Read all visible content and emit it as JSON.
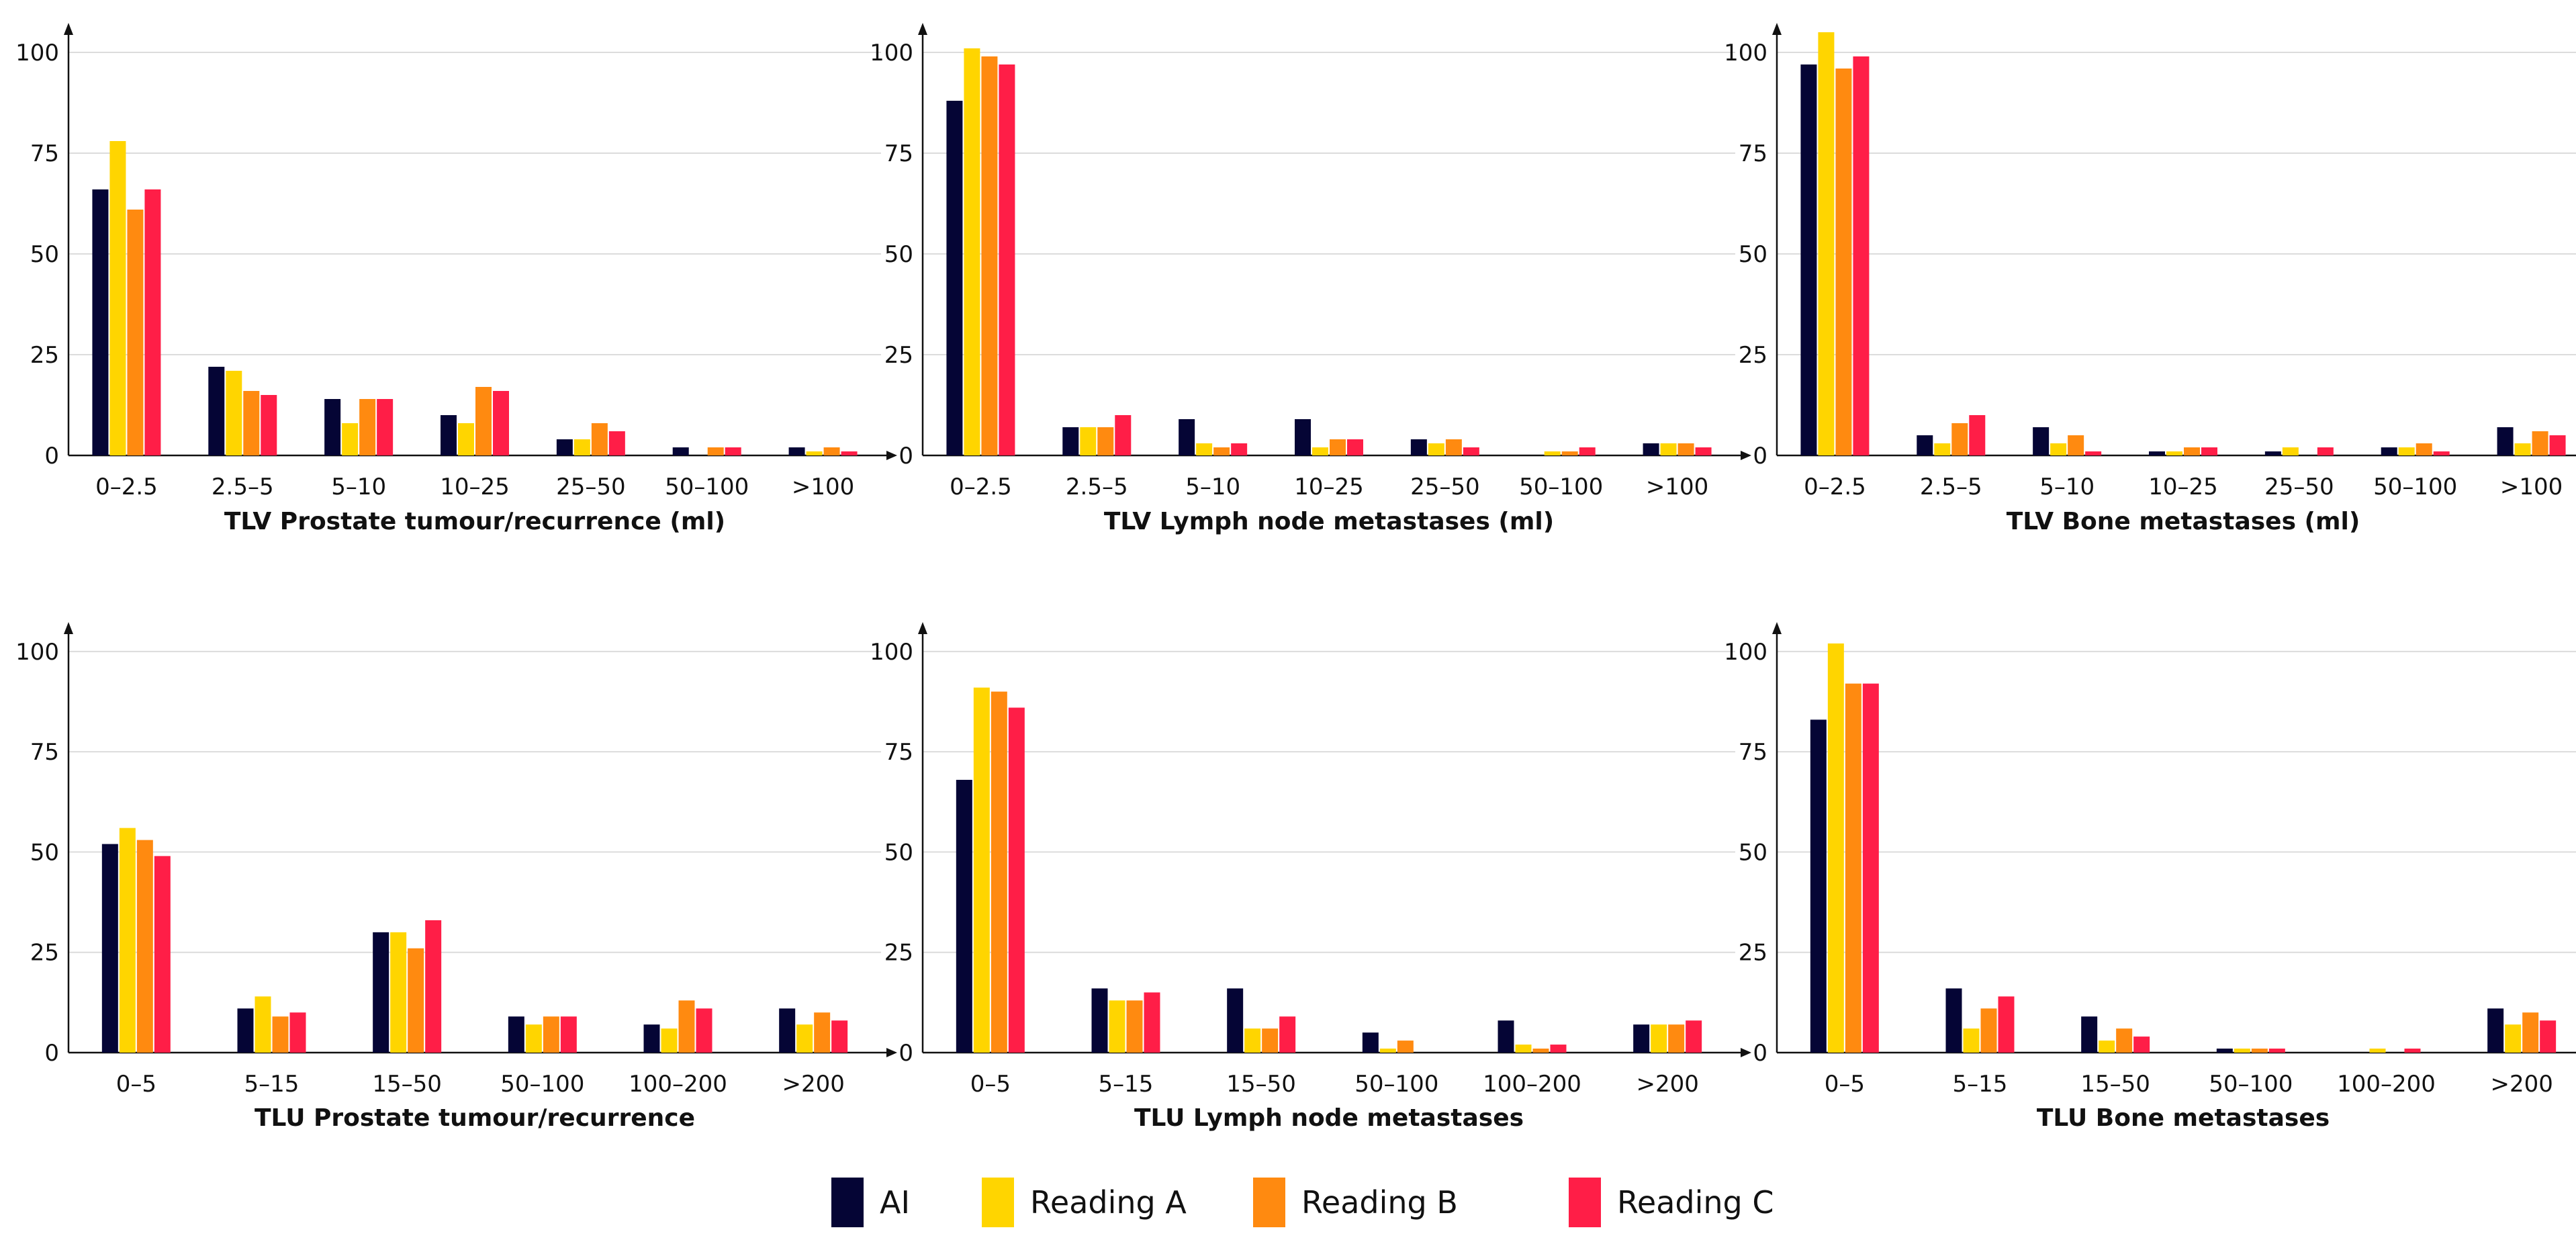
{
  "legend": [
    {
      "name": "AI",
      "color": "#050535"
    },
    {
      "name": "Reading A",
      "color": "#FFD500"
    },
    {
      "name": "Reading B",
      "color": "#FF8A10"
    },
    {
      "name": "Reading C",
      "color": "#FF1E47"
    }
  ],
  "chart_data": [
    {
      "type": "bar",
      "xlabel": "TLV Prostate tumour/recurrence (ml)",
      "ylabel": "",
      "ylim": [
        0,
        105
      ],
      "yticks": [
        0,
        25,
        50,
        75,
        100
      ],
      "grid": true,
      "categories": [
        "0–2.5",
        "2.5–5",
        "5–10",
        "10–25",
        "25–50",
        "50–100",
        ">100"
      ],
      "series": [
        {
          "name": "AI",
          "values": [
            66,
            22,
            14,
            10,
            4,
            2,
            2
          ]
        },
        {
          "name": "Reading A",
          "values": [
            78,
            21,
            8,
            8,
            4,
            0,
            1
          ]
        },
        {
          "name": "Reading B",
          "values": [
            61,
            16,
            14,
            17,
            8,
            2,
            2
          ]
        },
        {
          "name": "Reading C",
          "values": [
            66,
            15,
            14,
            16,
            6,
            2,
            1
          ]
        }
      ]
    },
    {
      "type": "bar",
      "xlabel": "TLV Lymph node metastases (ml)",
      "ylabel": "",
      "ylim": [
        0,
        105
      ],
      "yticks": [
        0,
        25,
        50,
        75,
        100
      ],
      "grid": true,
      "categories": [
        "0–2.5",
        "2.5–5",
        "5–10",
        "10–25",
        "25–50",
        "50–100",
        ">100"
      ],
      "series": [
        {
          "name": "AI",
          "values": [
            88,
            7,
            9,
            9,
            4,
            0,
            3
          ]
        },
        {
          "name": "Reading A",
          "values": [
            101,
            7,
            3,
            2,
            3,
            1,
            3
          ]
        },
        {
          "name": "Reading B",
          "values": [
            99,
            7,
            2,
            4,
            4,
            1,
            3
          ]
        },
        {
          "name": "Reading C",
          "values": [
            97,
            10,
            3,
            4,
            2,
            2,
            2
          ]
        }
      ]
    },
    {
      "type": "bar",
      "xlabel": "TLV Bone metastases (ml)",
      "ylabel": "",
      "ylim": [
        0,
        105
      ],
      "yticks": [
        0,
        25,
        50,
        75,
        100
      ],
      "grid": true,
      "categories": [
        "0–2.5",
        "2.5–5",
        "5–10",
        "10–25",
        "25–50",
        "50–100",
        ">100"
      ],
      "series": [
        {
          "name": "AI",
          "values": [
            97,
            5,
            7,
            1,
            1,
            2,
            7
          ]
        },
        {
          "name": "Reading A",
          "values": [
            105,
            3,
            3,
            1,
            2,
            2,
            3
          ]
        },
        {
          "name": "Reading B",
          "values": [
            96,
            8,
            5,
            2,
            0,
            3,
            6
          ]
        },
        {
          "name": "Reading C",
          "values": [
            99,
            10,
            1,
            2,
            2,
            1,
            5
          ]
        }
      ]
    },
    {
      "type": "bar",
      "xlabel": "TLU Prostate tumour/recurrence",
      "ylabel": "",
      "ylim": [
        0,
        105
      ],
      "yticks": [
        0,
        25,
        50,
        75,
        100
      ],
      "grid": true,
      "categories": [
        "0–5",
        "5–15",
        "15–50",
        "50–100",
        "100–200",
        ">200"
      ],
      "series": [
        {
          "name": "AI",
          "values": [
            52,
            11,
            30,
            9,
            7,
            11
          ]
        },
        {
          "name": "Reading A",
          "values": [
            56,
            14,
            30,
            7,
            6,
            7
          ]
        },
        {
          "name": "Reading B",
          "values": [
            53,
            9,
            26,
            9,
            13,
            10
          ]
        },
        {
          "name": "Reading C",
          "values": [
            49,
            10,
            33,
            9,
            11,
            8
          ]
        }
      ]
    },
    {
      "type": "bar",
      "xlabel": "TLU Lymph node metastases",
      "ylabel": "",
      "ylim": [
        0,
        105
      ],
      "yticks": [
        0,
        25,
        50,
        75,
        100
      ],
      "grid": true,
      "categories": [
        "0–5",
        "5–15",
        "15–50",
        "50–100",
        "100–200",
        ">200"
      ],
      "series": [
        {
          "name": "AI",
          "values": [
            68,
            16,
            16,
            5,
            8,
            7
          ]
        },
        {
          "name": "Reading A",
          "values": [
            91,
            13,
            6,
            1,
            2,
            7
          ]
        },
        {
          "name": "Reading B",
          "values": [
            90,
            13,
            6,
            3,
            1,
            7
          ]
        },
        {
          "name": "Reading C",
          "values": [
            86,
            15,
            9,
            0,
            2,
            8
          ]
        }
      ]
    },
    {
      "type": "bar",
      "xlabel": "TLU Bone metastases",
      "ylabel": "",
      "ylim": [
        0,
        105
      ],
      "yticks": [
        0,
        25,
        50,
        75,
        100
      ],
      "grid": true,
      "categories": [
        "0–5",
        "5–15",
        "15–50",
        "50–100",
        "100–200",
        ">200"
      ],
      "series": [
        {
          "name": "AI",
          "values": [
            83,
            16,
            9,
            1,
            0,
            11
          ]
        },
        {
          "name": "Reading A",
          "values": [
            102,
            6,
            3,
            1,
            1,
            7
          ]
        },
        {
          "name": "Reading B",
          "values": [
            92,
            11,
            6,
            1,
            0,
            10
          ]
        },
        {
          "name": "Reading C",
          "values": [
            92,
            14,
            4,
            1,
            1,
            8
          ]
        }
      ]
    }
  ]
}
